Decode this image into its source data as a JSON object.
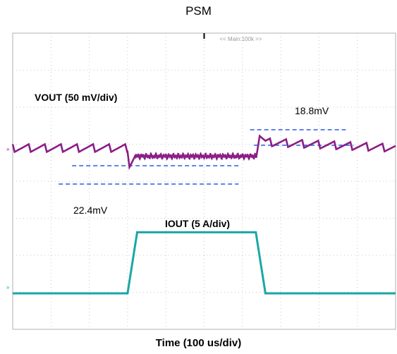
{
  "chart_data": {
    "type": "line",
    "title": "PSM",
    "xlabel": "Time (100 us/div)",
    "timebase_label": "<< Main:100k >>",
    "grid": true,
    "divisions": {
      "x": 10,
      "y": 8
    },
    "colors": {
      "vout": "#8a1f86",
      "iout": "#1aa6a6",
      "marker": "#2b5ce6",
      "grid": "#c8c8c8",
      "frame": "#b0b0b0"
    },
    "series": [
      {
        "name": "VOUT (50 mV/div)",
        "x_div": [
          0,
          3.0,
          3.05,
          3.2,
          6.35,
          6.45,
          6.6,
          10
        ],
        "y_mv": [
          0,
          0,
          -22.4,
          -11,
          -11,
          18.8,
          8,
          0
        ]
      },
      {
        "name": "IOUT (5 A/div)",
        "x_div": [
          0,
          3.0,
          3.25,
          6.35,
          6.6,
          10
        ],
        "y_a": [
          0,
          0,
          15,
          15,
          0,
          0
        ]
      }
    ],
    "annotations": [
      {
        "text": "22.4mV",
        "series": "VOUT (50 mV/div)",
        "x_div_range": [
          1.2,
          5.9
        ]
      },
      {
        "text": "18.8mV",
        "series": "VOUT (50 mV/div)",
        "x_div_range": [
          6.2,
          8.7
        ]
      }
    ]
  }
}
